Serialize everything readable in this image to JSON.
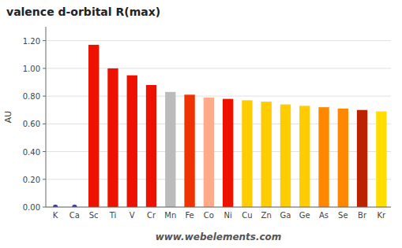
{
  "chart_data": {
    "type": "bar",
    "title": "valence d-orbital R(max)",
    "y_label": "AU",
    "annotation": "www.webelements.com",
    "categories": [
      "K",
      "Ca",
      "Sc",
      "Ti",
      "V",
      "Cr",
      "Mn",
      "Fe",
      "Co",
      "Ni",
      "Cu",
      "Zn",
      "Ga",
      "Ge",
      "As",
      "Se",
      "Br",
      "Kr"
    ],
    "values": [
      0.0,
      0.0,
      1.17,
      1.0,
      0.95,
      0.88,
      0.83,
      0.81,
      0.79,
      0.78,
      0.77,
      0.76,
      0.74,
      0.73,
      0.72,
      0.71,
      0.7,
      0.69
    ],
    "colors": [
      "#3333cc",
      "#3333cc",
      "#ee1100",
      "#ee1100",
      "#ee1100",
      "#ee1100",
      "#bbbbbb",
      "#ee3300",
      "#ffaa88",
      "#ee1100",
      "#ffcc00",
      "#ffcc00",
      "#ffcc00",
      "#ffcc00",
      "#ff8800",
      "#ff8800",
      "#bb2200",
      "#ffdd00"
    ],
    "ylim": [
      0.0,
      1.3
    ],
    "yticks": [
      {
        "value": 0.0,
        "label": "0.00"
      },
      {
        "value": 0.2,
        "label": "0.20"
      },
      {
        "value": 0.4,
        "label": "0.40"
      },
      {
        "value": 0.6,
        "label": "0.60"
      },
      {
        "value": 0.8,
        "label": "0.80"
      },
      {
        "value": 1.0,
        "label": "1.00"
      },
      {
        "value": 1.2,
        "label": "1.20"
      }
    ],
    "grid": true
  }
}
